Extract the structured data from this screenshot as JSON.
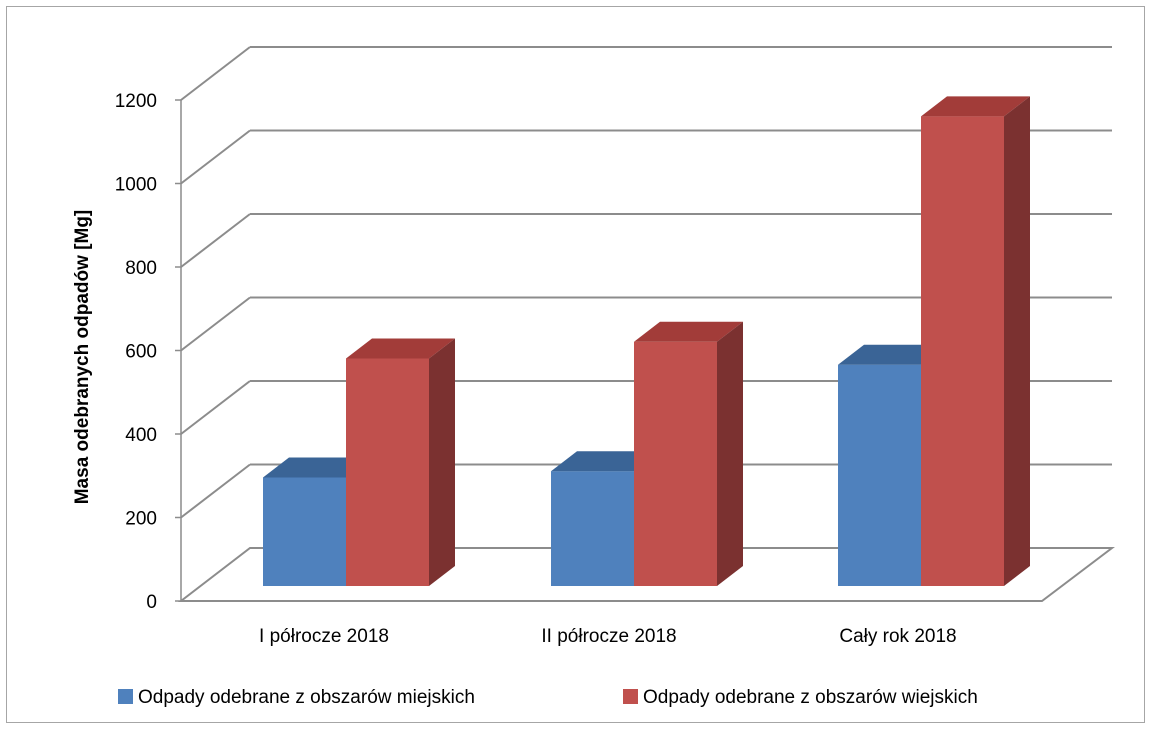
{
  "chart_data": {
    "type": "bar",
    "style": "3d-clustered-column",
    "categories": [
      "I półrocze 2018",
      "II półrocze 2018",
      "Cały rok 2018"
    ],
    "series": [
      {
        "name": "Odpady odebrane z obszarów miejskich",
        "color": "#4f81bd",
        "top_color": "#3a6496",
        "side_color": "#2e4f78",
        "values": [
          260,
          275,
          530
        ]
      },
      {
        "name": "Odpady odebrane z obszarów wiejskich",
        "color": "#c0504d",
        "top_color": "#a23c39",
        "side_color": "#7b3130",
        "values": [
          545,
          585,
          1125
        ]
      }
    ],
    "ylabel": "Masa odebranych odpadów [Mg]",
    "xlabel": "",
    "title": "",
    "ylim": [
      0,
      1200
    ],
    "yticks": [
      0,
      200,
      400,
      600,
      800,
      1000,
      1200
    ],
    "grid": true,
    "legend_position": "bottom"
  }
}
